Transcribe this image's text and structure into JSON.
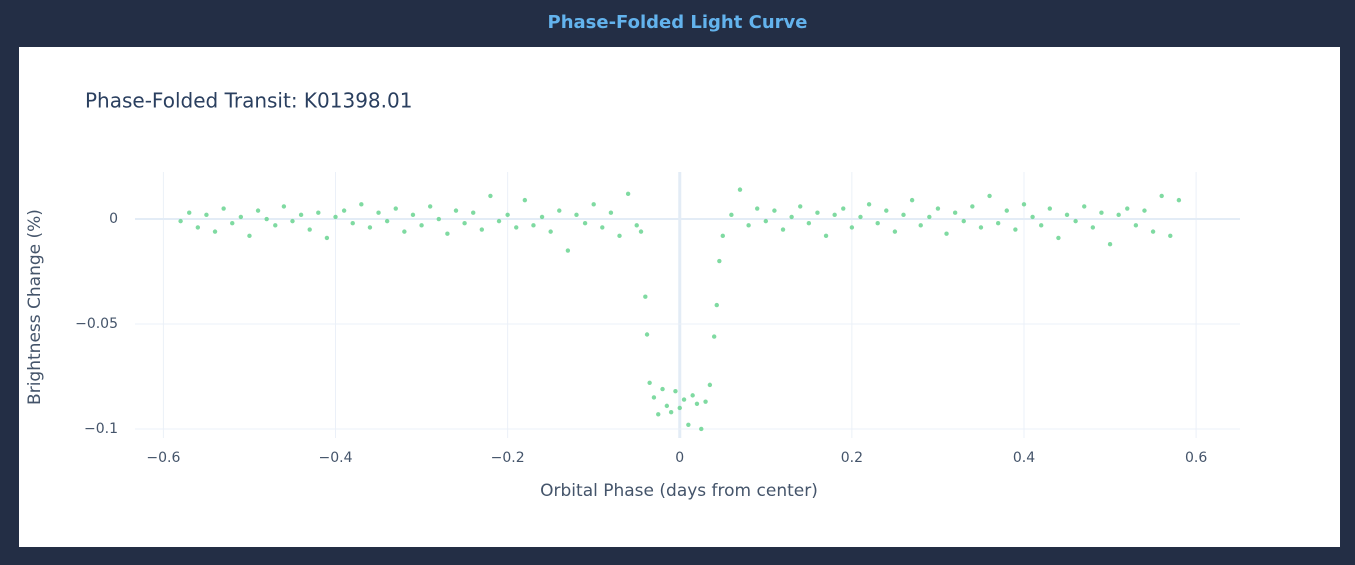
{
  "header": {
    "title": "Phase-Folded Light Curve"
  },
  "chart_data": {
    "type": "scatter",
    "title": "Phase-Folded Transit: K01398.01",
    "xlabel": "Orbital Phase (days from center)",
    "ylabel": "Brightness Change (%)",
    "xlim": [
      -0.633,
      0.651
    ],
    "ylim": [
      -0.1043,
      0.0224
    ],
    "xticks": [
      {
        "value": -0.6,
        "label": "−0.6"
      },
      {
        "value": -0.4,
        "label": "−0.4"
      },
      {
        "value": -0.2,
        "label": "−0.2"
      },
      0,
      0.2,
      0.4,
      0.6
    ],
    "yticks": [
      0,
      {
        "value": -0.05,
        "label": "−0.05"
      },
      {
        "value": -0.1,
        "label": "−0.1"
      }
    ],
    "grid": true,
    "series": [
      {
        "color": "#68d391",
        "x": [
          -0.58,
          -0.57,
          -0.56,
          -0.55,
          -0.54,
          -0.53,
          -0.52,
          -0.51,
          -0.5,
          -0.49,
          -0.48,
          -0.47,
          -0.46,
          -0.45,
          -0.44,
          -0.43,
          -0.42,
          -0.41,
          -0.4,
          -0.39,
          -0.38,
          -0.37,
          -0.36,
          -0.35,
          -0.34,
          -0.33,
          -0.32,
          -0.31,
          -0.3,
          -0.29,
          -0.28,
          -0.27,
          -0.26,
          -0.25,
          -0.24,
          -0.23,
          -0.22,
          -0.21,
          -0.2,
          -0.19,
          -0.18,
          -0.17,
          -0.16,
          -0.15,
          -0.14,
          -0.13,
          -0.12,
          -0.11,
          -0.1,
          -0.09,
          -0.08,
          -0.07,
          -0.06,
          -0.05,
          -0.045,
          -0.04,
          -0.038,
          -0.035,
          -0.03,
          -0.025,
          -0.02,
          -0.015,
          -0.01,
          -0.005,
          0,
          0.005,
          0.01,
          0.015,
          0.02,
          0.025,
          0.03,
          0.035,
          0.04,
          0.043,
          0.046,
          0.05,
          0.06,
          0.07,
          0.08,
          0.09,
          0.1,
          0.11,
          0.12,
          0.13,
          0.14,
          0.15,
          0.16,
          0.17,
          0.18,
          0.19,
          0.2,
          0.21,
          0.22,
          0.23,
          0.24,
          0.25,
          0.26,
          0.27,
          0.28,
          0.29,
          0.3,
          0.31,
          0.32,
          0.33,
          0.34,
          0.35,
          0.36,
          0.37,
          0.38,
          0.39,
          0.4,
          0.41,
          0.42,
          0.43,
          0.44,
          0.45,
          0.46,
          0.47,
          0.48,
          0.49,
          0.5,
          0.51,
          0.52,
          0.53,
          0.54,
          0.55,
          0.56,
          0.57,
          0.58
        ],
        "values": [
          -0.001,
          0.003,
          -0.004,
          0.002,
          -0.006,
          0.005,
          -0.002,
          0.001,
          -0.008,
          0.004,
          0,
          -0.003,
          0.006,
          -0.001,
          0.002,
          -0.005,
          0.003,
          -0.009,
          0.001,
          0.004,
          -0.002,
          0.007,
          -0.004,
          0.003,
          -0.001,
          0.005,
          -0.006,
          0.002,
          -0.003,
          0.006,
          0,
          -0.007,
          0.004,
          -0.002,
          0.003,
          -0.005,
          0.011,
          -0.001,
          0.002,
          -0.004,
          0.009,
          -0.003,
          0.001,
          -0.006,
          0.004,
          -0.015,
          0.002,
          -0.002,
          0.007,
          -0.004,
          0.003,
          -0.008,
          0.012,
          -0.003,
          -0.006,
          -0.037,
          -0.055,
          -0.078,
          -0.085,
          -0.093,
          -0.081,
          -0.089,
          -0.092,
          -0.082,
          -0.09,
          -0.086,
          -0.098,
          -0.084,
          -0.088,
          -0.1,
          -0.087,
          -0.079,
          -0.056,
          -0.041,
          -0.02,
          -0.008,
          0.002,
          0.014,
          -0.003,
          0.005,
          -0.001,
          0.004,
          -0.005,
          0.001,
          0.006,
          -0.002,
          0.003,
          -0.008,
          0.002,
          0.005,
          -0.004,
          0.001,
          0.007,
          -0.002,
          0.004,
          -0.006,
          0.002,
          0.009,
          -0.003,
          0.001,
          0.005,
          -0.007,
          0.003,
          -0.001,
          0.006,
          -0.004,
          0.011,
          -0.002,
          0.004,
          -0.005,
          0.007,
          0.001,
          -0.003,
          0.005,
          -0.009,
          0.002,
          -0.001,
          0.006,
          -0.004,
          0.003,
          -0.012,
          0.002,
          0.005,
          -0.003,
          0.004,
          -0.006,
          0.011,
          -0.008,
          0.009
        ]
      }
    ]
  }
}
